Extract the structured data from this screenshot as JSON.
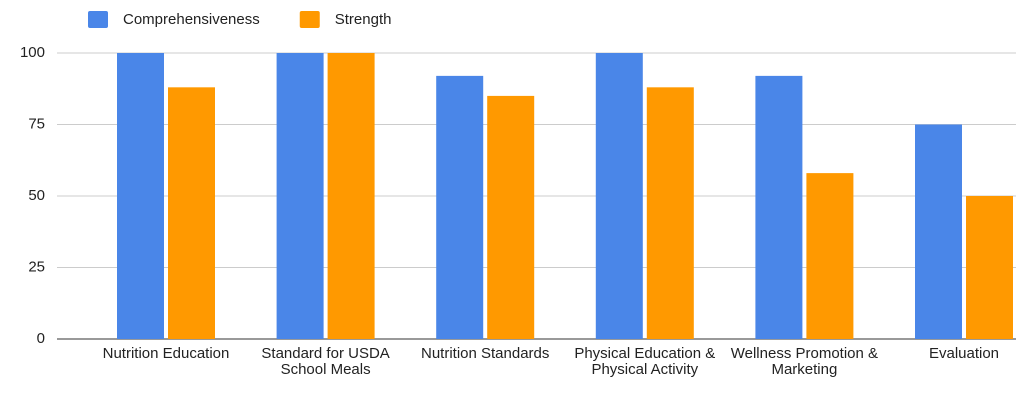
{
  "chart_data": {
    "type": "bar",
    "categories": [
      "Nutrition Education",
      "Standard for USDA School Meals",
      "Nutrition Standards",
      "Physical Education & Physical Activity",
      "Wellness Promotion & Marketing",
      "Evaluation"
    ],
    "series": [
      {
        "name": "Comprehensiveness",
        "color": "#4a86e8",
        "values": [
          100,
          100,
          92,
          100,
          92,
          75
        ]
      },
      {
        "name": "Strength",
        "color": "#ff9900",
        "values": [
          88,
          100,
          85,
          88,
          58,
          50
        ]
      }
    ],
    "ylim": [
      0,
      100
    ],
    "yticks": [
      0,
      25,
      50,
      75,
      100
    ],
    "grid": true,
    "legend": "top"
  }
}
